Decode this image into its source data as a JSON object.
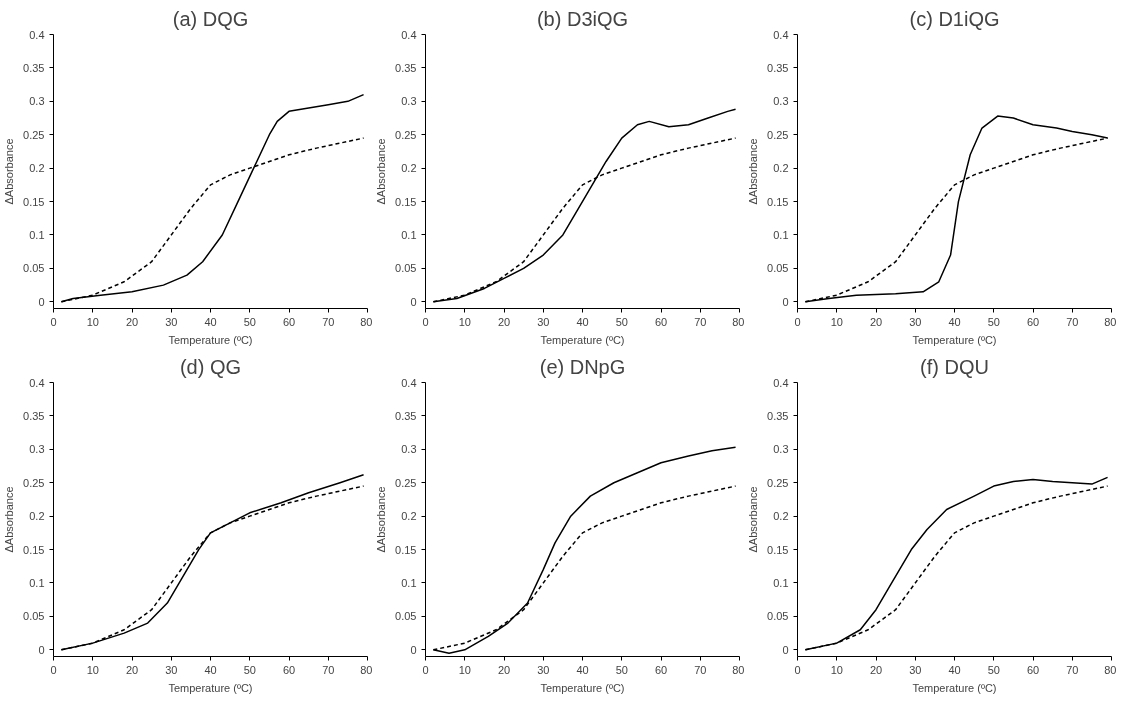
{
  "chart_data": [
    {
      "type": "line",
      "title": "(a) DQG",
      "xlabel": "Temperature (ºC)",
      "ylabel": "ΔAbsorbance",
      "xlim": [
        0,
        80
      ],
      "ylim": [
        -0.01,
        0.4
      ],
      "xticks": [
        0,
        10,
        20,
        30,
        40,
        50,
        60,
        70,
        80
      ],
      "yticks": [
        0,
        0.05,
        0.1,
        0.15,
        0.2,
        0.25,
        0.3,
        0.35,
        0.4
      ],
      "grid": false,
      "marker": "none",
      "series": [
        {
          "color": "#000000",
          "line_style": "solid",
          "x": [
            2,
            5,
            12,
            20,
            28,
            34,
            38,
            43,
            47,
            51,
            55,
            57,
            60,
            65,
            70,
            75,
            79
          ],
          "values": [
            0,
            0.005,
            0.01,
            0.015,
            0.025,
            0.04,
            0.06,
            0.1,
            0.15,
            0.2,
            0.25,
            0.27,
            0.285,
            0.29,
            0.295,
            0.3,
            0.31
          ]
        },
        {
          "color": "#000000",
          "line_style": "dashed",
          "x": [
            2,
            10,
            18,
            25,
            30,
            35,
            40,
            45,
            50,
            55,
            60,
            67,
            75,
            79
          ],
          "values": [
            0,
            0.01,
            0.03,
            0.06,
            0.1,
            0.14,
            0.175,
            0.19,
            0.2,
            0.21,
            0.22,
            0.23,
            0.24,
            0.245
          ]
        }
      ]
    },
    {
      "type": "line",
      "title": "(b) D3iQG",
      "xlabel": "Temperature (ºC)",
      "ylabel": "ΔAbsorbance",
      "xlim": [
        0,
        80
      ],
      "ylim": [
        -0.01,
        0.4
      ],
      "xticks": [
        0,
        10,
        20,
        30,
        40,
        50,
        60,
        70,
        80
      ],
      "yticks": [
        0,
        0.05,
        0.1,
        0.15,
        0.2,
        0.25,
        0.3,
        0.35,
        0.4
      ],
      "grid": false,
      "marker": "none",
      "series": [
        {
          "color": "#000000",
          "line_style": "solid",
          "x": [
            2,
            8,
            15,
            20,
            25,
            30,
            35,
            38,
            42,
            46,
            50,
            54,
            57,
            62,
            67,
            72,
            77,
            79
          ],
          "values": [
            0,
            0.005,
            0.02,
            0.035,
            0.05,
            0.07,
            0.1,
            0.13,
            0.17,
            0.21,
            0.245,
            0.265,
            0.27,
            0.262,
            0.265,
            0.275,
            0.285,
            0.288
          ]
        },
        {
          "color": "#000000",
          "line_style": "dashed",
          "x": [
            2,
            10,
            18,
            25,
            30,
            35,
            40,
            45,
            50,
            55,
            60,
            67,
            75,
            79
          ],
          "values": [
            0,
            0.01,
            0.03,
            0.06,
            0.1,
            0.14,
            0.175,
            0.19,
            0.2,
            0.21,
            0.22,
            0.23,
            0.24,
            0.245
          ]
        }
      ]
    },
    {
      "type": "line",
      "title": "(c) D1iQG",
      "xlabel": "Temperature (ºC)",
      "ylabel": "ΔAbsorbance",
      "xlim": [
        0,
        80
      ],
      "ylim": [
        -0.01,
        0.4
      ],
      "xticks": [
        0,
        10,
        20,
        30,
        40,
        50,
        60,
        70,
        80
      ],
      "yticks": [
        0,
        0.05,
        0.1,
        0.15,
        0.2,
        0.25,
        0.3,
        0.35,
        0.4
      ],
      "grid": false,
      "marker": "none",
      "series": [
        {
          "color": "#000000",
          "line_style": "solid",
          "x": [
            2,
            8,
            15,
            25,
            32,
            36,
            39,
            41,
            44,
            47,
            51,
            55,
            60,
            66,
            70,
            75,
            79
          ],
          "values": [
            0,
            0.005,
            0.01,
            0.012,
            0.015,
            0.03,
            0.07,
            0.15,
            0.22,
            0.26,
            0.278,
            0.275,
            0.265,
            0.26,
            0.255,
            0.25,
            0.245
          ]
        },
        {
          "color": "#000000",
          "line_style": "dashed",
          "x": [
            2,
            10,
            18,
            25,
            30,
            35,
            40,
            45,
            50,
            55,
            60,
            67,
            75,
            79
          ],
          "values": [
            0,
            0.01,
            0.03,
            0.06,
            0.1,
            0.14,
            0.175,
            0.19,
            0.2,
            0.21,
            0.22,
            0.23,
            0.24,
            0.245
          ]
        }
      ]
    },
    {
      "type": "line",
      "title": "(d) QG",
      "xlabel": "Temperature (ºC)",
      "ylabel": "ΔAbsorbance",
      "xlim": [
        0,
        80
      ],
      "ylim": [
        -0.01,
        0.4
      ],
      "xticks": [
        0,
        10,
        20,
        30,
        40,
        50,
        60,
        70,
        80
      ],
      "yticks": [
        0,
        0.05,
        0.1,
        0.15,
        0.2,
        0.25,
        0.3,
        0.35,
        0.4
      ],
      "grid": false,
      "marker": "none",
      "series": [
        {
          "color": "#000000",
          "line_style": "solid",
          "x": [
            2,
            10,
            18,
            24,
            29,
            33,
            37,
            40,
            45,
            50,
            58,
            65,
            73,
            79
          ],
          "values": [
            0,
            0.01,
            0.025,
            0.04,
            0.07,
            0.11,
            0.15,
            0.175,
            0.19,
            0.205,
            0.22,
            0.235,
            0.25,
            0.262
          ]
        },
        {
          "color": "#000000",
          "line_style": "dashed",
          "x": [
            2,
            10,
            18,
            25,
            30,
            35,
            40,
            45,
            50,
            55,
            60,
            67,
            75,
            79
          ],
          "values": [
            0,
            0.01,
            0.03,
            0.06,
            0.1,
            0.14,
            0.175,
            0.19,
            0.2,
            0.21,
            0.22,
            0.23,
            0.24,
            0.245
          ]
        }
      ]
    },
    {
      "type": "line",
      "title": "(e) DNpG",
      "xlabel": "Temperature (ºC)",
      "ylabel": "ΔAbsorbance",
      "xlim": [
        0,
        80
      ],
      "ylim": [
        -0.01,
        0.4
      ],
      "xticks": [
        0,
        10,
        20,
        30,
        40,
        50,
        60,
        70,
        80
      ],
      "yticks": [
        0,
        0.05,
        0.1,
        0.15,
        0.2,
        0.25,
        0.3,
        0.35,
        0.4
      ],
      "grid": false,
      "marker": "none",
      "series": [
        {
          "color": "#000000",
          "line_style": "solid",
          "x": [
            2,
            6,
            10,
            16,
            21,
            26,
            30,
            33,
            37,
            42,
            48,
            54,
            60,
            67,
            73,
            79
          ],
          "values": [
            0,
            -0.005,
            0,
            0.02,
            0.04,
            0.07,
            0.12,
            0.16,
            0.2,
            0.23,
            0.25,
            0.265,
            0.28,
            0.29,
            0.298,
            0.303
          ]
        },
        {
          "color": "#000000",
          "line_style": "dashed",
          "x": [
            2,
            10,
            18,
            25,
            30,
            35,
            40,
            45,
            50,
            55,
            60,
            67,
            75,
            79
          ],
          "values": [
            0,
            0.01,
            0.03,
            0.06,
            0.1,
            0.14,
            0.175,
            0.19,
            0.2,
            0.21,
            0.22,
            0.23,
            0.24,
            0.245
          ]
        }
      ]
    },
    {
      "type": "line",
      "title": "(f) DQU",
      "xlabel": "Temperature (ºC)",
      "ylabel": "ΔAbsorbance",
      "xlim": [
        0,
        80
      ],
      "ylim": [
        -0.01,
        0.4
      ],
      "xticks": [
        0,
        10,
        20,
        30,
        40,
        50,
        60,
        70,
        80
      ],
      "yticks": [
        0,
        0.05,
        0.1,
        0.15,
        0.2,
        0.25,
        0.3,
        0.35,
        0.4
      ],
      "grid": false,
      "marker": "none",
      "series": [
        {
          "color": "#000000",
          "line_style": "solid",
          "x": [
            2,
            10,
            16,
            20,
            24,
            29,
            33,
            38,
            45,
            50,
            55,
            60,
            65,
            70,
            75,
            79
          ],
          "values": [
            0,
            0.01,
            0.03,
            0.06,
            0.1,
            0.15,
            0.18,
            0.21,
            0.23,
            0.245,
            0.252,
            0.255,
            0.252,
            0.25,
            0.248,
            0.258
          ]
        },
        {
          "color": "#000000",
          "line_style": "dashed",
          "x": [
            2,
            10,
            18,
            25,
            30,
            35,
            40,
            45,
            50,
            55,
            60,
            67,
            75,
            79
          ],
          "values": [
            0,
            0.01,
            0.03,
            0.06,
            0.1,
            0.14,
            0.175,
            0.19,
            0.2,
            0.21,
            0.22,
            0.23,
            0.24,
            0.245
          ]
        }
      ]
    }
  ]
}
